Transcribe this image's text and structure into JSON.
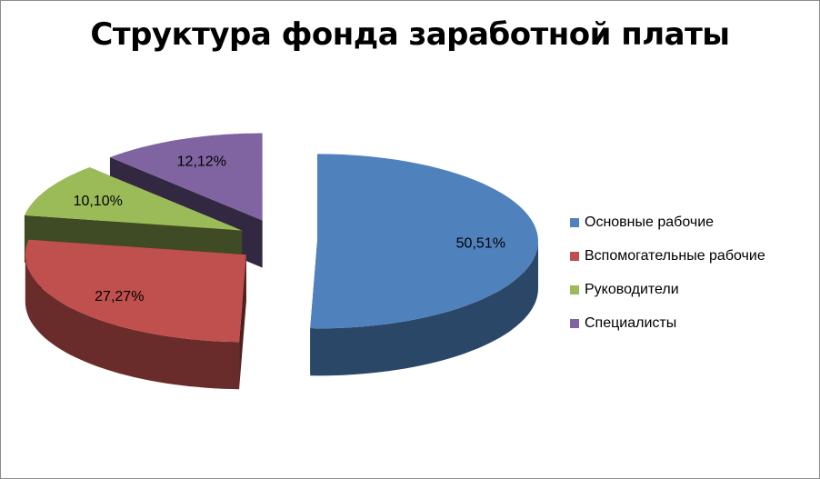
{
  "chart_data": {
    "type": "pie",
    "title": "Структура фонда заработной платы",
    "slices": [
      {
        "label": "Основные рабочие",
        "value": 50.51,
        "value_label": "50,51%",
        "color": "#4F81BD"
      },
      {
        "label": "Вспомогательные рабочие",
        "value": 27.27,
        "value_label": "27,27%",
        "color": "#C0504D"
      },
      {
        "label": "Руководители",
        "value": 10.1,
        "value_label": "10,10%",
        "color": "#9BBB59"
      },
      {
        "label": "Специалисты",
        "value": 12.12,
        "value_label": "12,12%",
        "color": "#8064A2"
      }
    ],
    "style": "3d-exploded",
    "legend_position": "right"
  }
}
